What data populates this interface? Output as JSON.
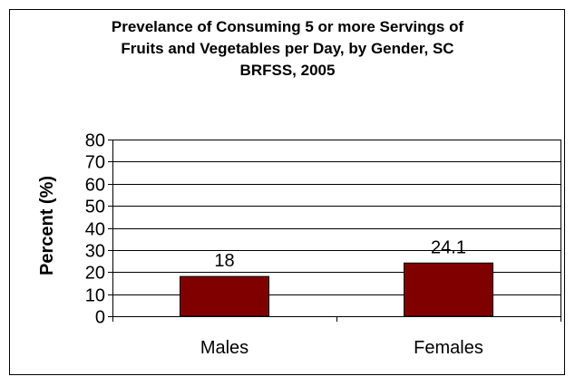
{
  "chart_data": {
    "type": "bar",
    "title_lines": [
      "Prevelance of Consuming 5 or more Servings of",
      "Fruits and Vegetables per Day, by Gender, SC",
      "BRFSS, 2005"
    ],
    "ylabel": "Percent (%)",
    "xlabel": "",
    "categories": [
      "Males",
      "Females"
    ],
    "values": [
      18,
      24.1
    ],
    "data_labels": [
      "18",
      "24.1"
    ],
    "ylim": [
      0,
      80
    ],
    "yticks": [
      "0",
      "10",
      "20",
      "30",
      "40",
      "50",
      "60",
      "70",
      "80"
    ],
    "grid": true,
    "legend": "none",
    "bar_color": "#800000",
    "plot_area_color": "#ffffff"
  }
}
